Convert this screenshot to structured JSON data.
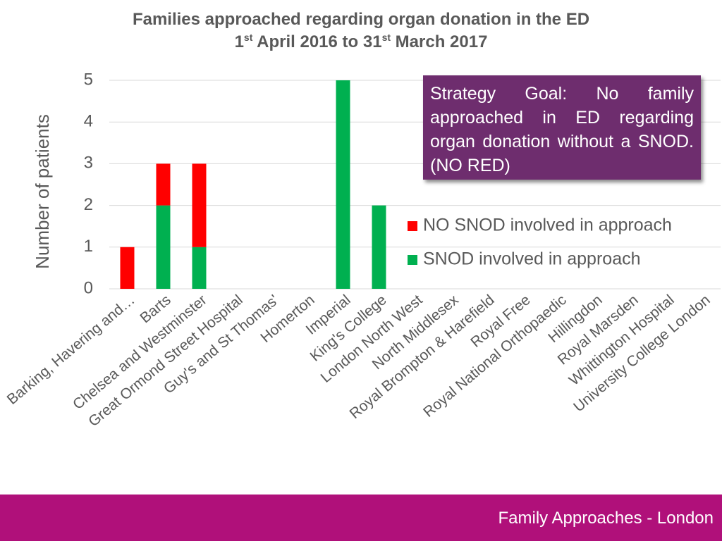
{
  "chart_data": {
    "type": "stacked-bar",
    "title_line1": "Families approached regarding organ donation in the ED",
    "title_line2_parts": [
      "1",
      "st",
      " April 2016 to 31",
      "st",
      " March 2017"
    ],
    "ylabel": "Number of patients",
    "ylim": [
      0,
      5
    ],
    "yticks": [
      0,
      1,
      2,
      3,
      4,
      5
    ],
    "grid": true,
    "legend_position": "right",
    "categories": [
      "Barking, Havering and…",
      "Barts",
      "Chelsea and Westminster",
      "Great Ormond Street Hospital",
      "Guy's and St Thomas'",
      "Homerton",
      "Imperial",
      "King's College",
      "London North West",
      "North Middlesex",
      "Royal Brompton & Harefield",
      "Royal Free",
      "Royal National Orthopaedic",
      "Hillingdon",
      "Royal Marsden",
      "Whittington Hospital",
      "University College London"
    ],
    "series": [
      {
        "name": "SNOD involved in approach",
        "color": "#00b050",
        "values": [
          0,
          2,
          1,
          0,
          0,
          0,
          5,
          2,
          0,
          0,
          0,
          0,
          0,
          0,
          0,
          0,
          0
        ]
      },
      {
        "name": "NO SNOD involved in approach",
        "color": "#ff0000",
        "values": [
          1,
          1,
          2,
          0,
          0,
          0,
          0,
          0,
          0,
          0,
          0,
          0,
          0,
          0,
          0,
          0,
          0
        ]
      }
    ],
    "legend_order": [
      "NO SNOD involved in approach",
      "SNOD involved in approach"
    ]
  },
  "callout": {
    "text": "Strategy Goal: No family approached in ED regarding organ donation without a SNOD. (NO RED)"
  },
  "footer": {
    "text": "Family Approaches - London"
  },
  "colors": {
    "axis_text": "#595959",
    "gridline": "#d9d9d9",
    "callout_bg": "#6e2d6e",
    "footer_bg": "#b0107a"
  }
}
